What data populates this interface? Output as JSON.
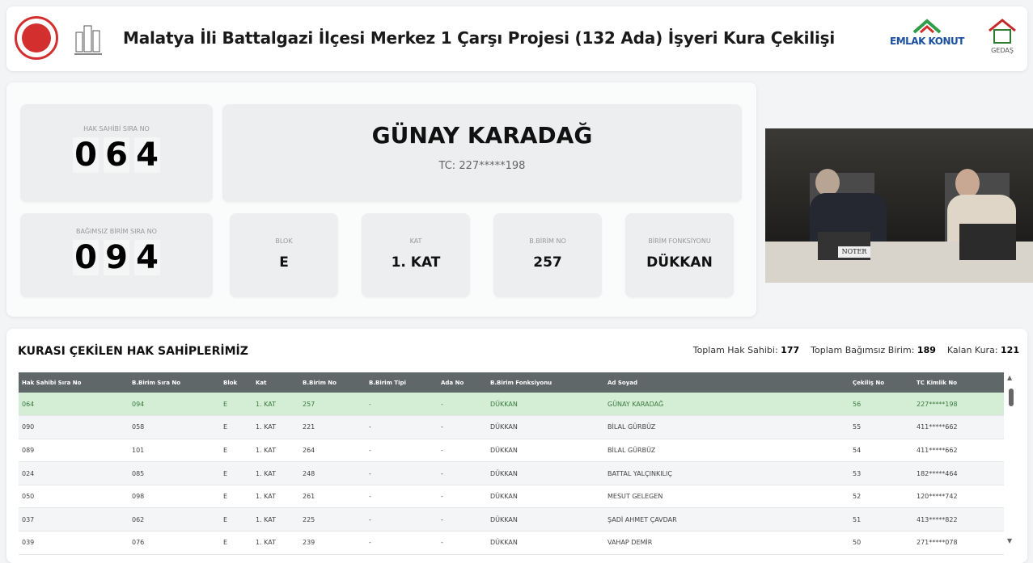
{
  "header": {
    "title": "Malatya İli Battalgazi İlçesi Merkez 1 Çarşı Projesi (132 Ada) İşyeri Kura Çekilişi",
    "logos": [
      "emlak-konut-logo",
      "gedas-logo"
    ],
    "emlak_text": "EMLAK KONUT",
    "gedas_text": "GEDAŞ"
  },
  "current": {
    "hak_sahibi_label": "HAK SAHİBİ SIRA NO",
    "hak_sahibi_digits": [
      "0",
      "6",
      "4"
    ],
    "birim_label": "BAĞIMSIZ BİRİM SIRA NO",
    "birim_digits": [
      "0",
      "9",
      "4"
    ],
    "name": "GÜNAY KARADAĞ",
    "tc": "TC: 227*****198",
    "details": [
      {
        "label": "BLOK",
        "value": "E"
      },
      {
        "label": "KAT",
        "value": "1. KAT"
      },
      {
        "label": "B.BİRİM NO",
        "value": "257"
      },
      {
        "label": "BİRİM FONKSİYONU",
        "value": "DÜKKAN"
      }
    ]
  },
  "video": {
    "sign": "NOTER"
  },
  "table": {
    "title": "KURASI ÇEKİLEN HAK SAHİPLERİMİZ",
    "stats": [
      {
        "label": "Toplam Hak Sahibi:",
        "value": "177"
      },
      {
        "label": "Toplam Bağımsız Birim:",
        "value": "189"
      },
      {
        "label": "Kalan Kura:",
        "value": "121"
      }
    ],
    "columns": [
      "Hak Sahibi Sıra No",
      "B.Birim Sıra No",
      "Blok",
      "Kat",
      "B.Birim No",
      "B.Birim Tipi",
      "Ada No",
      "B.Birim Fonksiyonu",
      "Ad Soyad",
      "Çekiliş No",
      "TC Kimlik No"
    ],
    "rows": [
      [
        "064",
        "094",
        "E",
        "1. KAT",
        "257",
        "-",
        "-",
        "DÜKKAN",
        "GÜNAY KARADAĞ",
        "56",
        "227*****198"
      ],
      [
        "090",
        "058",
        "E",
        "1. KAT",
        "221",
        "-",
        "-",
        "DÜKKAN",
        "BİLAL GÜRBÜZ",
        "55",
        "411*****662"
      ],
      [
        "089",
        "101",
        "E",
        "1. KAT",
        "264",
        "-",
        "-",
        "DÜKKAN",
        "BİLAL GÜRBÜZ",
        "54",
        "411*****662"
      ],
      [
        "024",
        "085",
        "E",
        "1. KAT",
        "248",
        "-",
        "-",
        "DÜKKAN",
        "BATTAL YALÇINKILIÇ",
        "53",
        "182*****464"
      ],
      [
        "050",
        "098",
        "E",
        "1. KAT",
        "261",
        "-",
        "-",
        "DÜKKAN",
        "MESUT GELEGEN",
        "52",
        "120*****742"
      ],
      [
        "037",
        "062",
        "E",
        "1. KAT",
        "225",
        "-",
        "-",
        "DÜKKAN",
        "ŞADİ AHMET ÇAVDAR",
        "51",
        "413*****822"
      ],
      [
        "039",
        "076",
        "E",
        "1. KAT",
        "239",
        "-",
        "-",
        "DÜKKAN",
        "VAHAP DEMİR",
        "50",
        "271*****078"
      ]
    ],
    "highlight_color": "#d4eed5",
    "header_color": "#5f6769"
  }
}
